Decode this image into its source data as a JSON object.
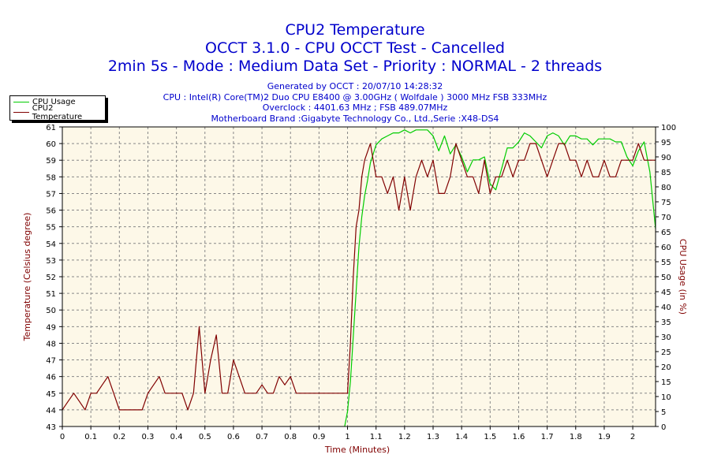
{
  "chart_data": {
    "type": "line",
    "title": "CPU2 Temperature",
    "subtitle": "OCCT 3.1.0 - CPU OCCT Test - Cancelled",
    "subtitle2": "2min 5s - Mode : Medium Data Set - Priority : NORMAL - 2 threads",
    "info": [
      "Generated by OCCT : 20/07/10 14:28:32",
      "CPU : Intel(R) Core(TM)2 Duo CPU E8400 @ 3.00GHz ( Wolfdale ) 3000 MHz FSB 333MHz",
      "Overclock : 4401.63 MHz ; FSB 489.07MHz",
      "Motherboard Brand :Gigabyte Technology Co., Ltd.,Serie :X48-DS4"
    ],
    "xlabel": "Time (Minutes)",
    "ylabel": "Temperature (Celsius degree)",
    "y2label": "CPU Usage (in %)",
    "xlim": [
      0,
      2.08
    ],
    "ylim": [
      43,
      61
    ],
    "y2lim": [
      0,
      100
    ],
    "x_ticks": [
      "0",
      "0.1",
      "0.2",
      "0.3",
      "0.4",
      "0.5",
      "0.6",
      "0.7",
      "0.8",
      "0.9",
      "1",
      "1.1",
      "1.2",
      "1.3",
      "1.4",
      "1.5",
      "1.6",
      "1.7",
      "1.8",
      "1.9",
      "2"
    ],
    "y_ticks": [
      "43",
      "44",
      "45",
      "46",
      "47",
      "48",
      "49",
      "50",
      "51",
      "52",
      "53",
      "54",
      "55",
      "56",
      "57",
      "58",
      "59",
      "60",
      "61"
    ],
    "y2_ticks": [
      "0",
      "5",
      "10",
      "15",
      "20",
      "25",
      "30",
      "35",
      "40",
      "45",
      "50",
      "55",
      "60",
      "65",
      "70",
      "75",
      "80",
      "85",
      "90",
      "95",
      "100"
    ],
    "grid": true,
    "legend_position": "top-left",
    "colors": {
      "cpu_usage": "#00cc00",
      "cpu2_temperature": "#800000",
      "title": "#0000cc",
      "axis_label": "#800000",
      "plot_bg": "#fdf8e8"
    },
    "series": [
      {
        "name": "CPU Usage",
        "axis": "right",
        "x": [
          0.99,
          1.0,
          1.01,
          1.02,
          1.03,
          1.04,
          1.05,
          1.06,
          1.07,
          1.08,
          1.1,
          1.12,
          1.14,
          1.16,
          1.18,
          1.2,
          1.22,
          1.24,
          1.26,
          1.28,
          1.3,
          1.32,
          1.34,
          1.36,
          1.38,
          1.4,
          1.42,
          1.44,
          1.46,
          1.48,
          1.5,
          1.52,
          1.54,
          1.56,
          1.58,
          1.6,
          1.62,
          1.64,
          1.66,
          1.68,
          1.7,
          1.72,
          1.74,
          1.76,
          1.78,
          1.8,
          1.82,
          1.84,
          1.86,
          1.88,
          1.9,
          1.92,
          1.94,
          1.96,
          1.98,
          2.0,
          2.02,
          2.04,
          2.06,
          2.08
        ],
        "values": [
          0,
          5,
          15,
          30,
          45,
          60,
          70,
          77,
          82,
          88,
          94,
          96,
          97,
          98,
          98,
          99,
          98,
          99,
          99,
          99,
          97,
          92,
          97,
          91,
          94,
          90,
          85,
          89,
          89,
          90,
          81,
          79,
          86,
          93,
          93,
          95,
          98,
          97,
          95,
          93,
          97,
          98,
          97,
          94,
          97,
          97,
          96,
          96,
          94,
          96,
          96,
          96,
          95,
          95,
          90,
          87,
          92,
          95,
          85,
          66
        ]
      },
      {
        "name": "CPU2 Temperature",
        "axis": "left",
        "x": [
          0.0,
          0.02,
          0.04,
          0.06,
          0.08,
          0.1,
          0.12,
          0.14,
          0.16,
          0.18,
          0.2,
          0.22,
          0.24,
          0.26,
          0.28,
          0.3,
          0.32,
          0.34,
          0.36,
          0.38,
          0.4,
          0.42,
          0.44,
          0.46,
          0.48,
          0.5,
          0.52,
          0.54,
          0.56,
          0.58,
          0.6,
          0.62,
          0.64,
          0.66,
          0.68,
          0.7,
          0.72,
          0.74,
          0.76,
          0.78,
          0.8,
          0.82,
          0.84,
          0.86,
          0.88,
          0.9,
          0.92,
          0.94,
          0.96,
          0.98,
          1.0,
          1.01,
          1.02,
          1.03,
          1.04,
          1.05,
          1.06,
          1.08,
          1.1,
          1.12,
          1.14,
          1.16,
          1.18,
          1.2,
          1.22,
          1.24,
          1.26,
          1.28,
          1.3,
          1.32,
          1.34,
          1.36,
          1.38,
          1.4,
          1.42,
          1.44,
          1.46,
          1.48,
          1.5,
          1.52,
          1.54,
          1.56,
          1.58,
          1.6,
          1.62,
          1.64,
          1.66,
          1.68,
          1.7,
          1.72,
          1.74,
          1.76,
          1.78,
          1.8,
          1.82,
          1.84,
          1.86,
          1.88,
          1.9,
          1.92,
          1.94,
          1.96,
          1.98,
          2.0,
          2.02,
          2.04,
          2.06,
          2.08
        ],
        "values": [
          44,
          44.5,
          45,
          44.5,
          44,
          45,
          45,
          45.5,
          46,
          45,
          44,
          44,
          44,
          44,
          44,
          45,
          45.5,
          46,
          45,
          45,
          45,
          45,
          44,
          45,
          49,
          45,
          47,
          48.5,
          45,
          45,
          47,
          46,
          45,
          45,
          45,
          45.5,
          45,
          45,
          46,
          45.5,
          46,
          45,
          45,
          45,
          45,
          45,
          45,
          45,
          45,
          45,
          45,
          48,
          52,
          55,
          56,
          58,
          59,
          60,
          58,
          58,
          57,
          58,
          56,
          58,
          56,
          58,
          59,
          58,
          59,
          57,
          57,
          58,
          60,
          59,
          58,
          58,
          57,
          59,
          57,
          58,
          58,
          59,
          58,
          59,
          59,
          60,
          60,
          59,
          58,
          59,
          60,
          60,
          59,
          59,
          58,
          59,
          58,
          58,
          59,
          58,
          58,
          59,
          59,
          59,
          60,
          59,
          59,
          59
        ]
      }
    ]
  }
}
